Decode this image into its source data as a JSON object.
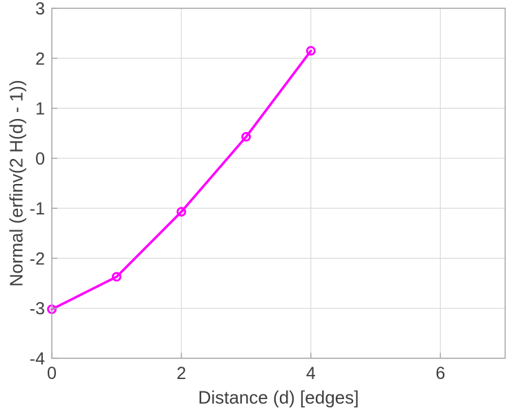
{
  "chart_data": {
    "type": "line",
    "title": "",
    "xlabel": "Distance (d) [edges]",
    "ylabel": "Normal (erfinv(2 H(d) - 1))",
    "x": [
      0,
      1,
      2,
      3,
      4
    ],
    "y": [
      -3.02,
      -2.37,
      -1.07,
      0.43,
      2.15
    ],
    "xlim": [
      0,
      7
    ],
    "ylim": [
      -4,
      3
    ],
    "xticks": [
      0,
      2,
      4,
      6
    ],
    "yticks": [
      -4,
      -3,
      -2,
      -1,
      0,
      1,
      2,
      3
    ],
    "grid": true,
    "legend": null,
    "line_color": "#ff00ff",
    "marker": "circle",
    "marker_fill": "none",
    "grid_color": "#dcdcdc",
    "axis_color": "#ababab",
    "tick_label_color": "#3f3f3f"
  }
}
